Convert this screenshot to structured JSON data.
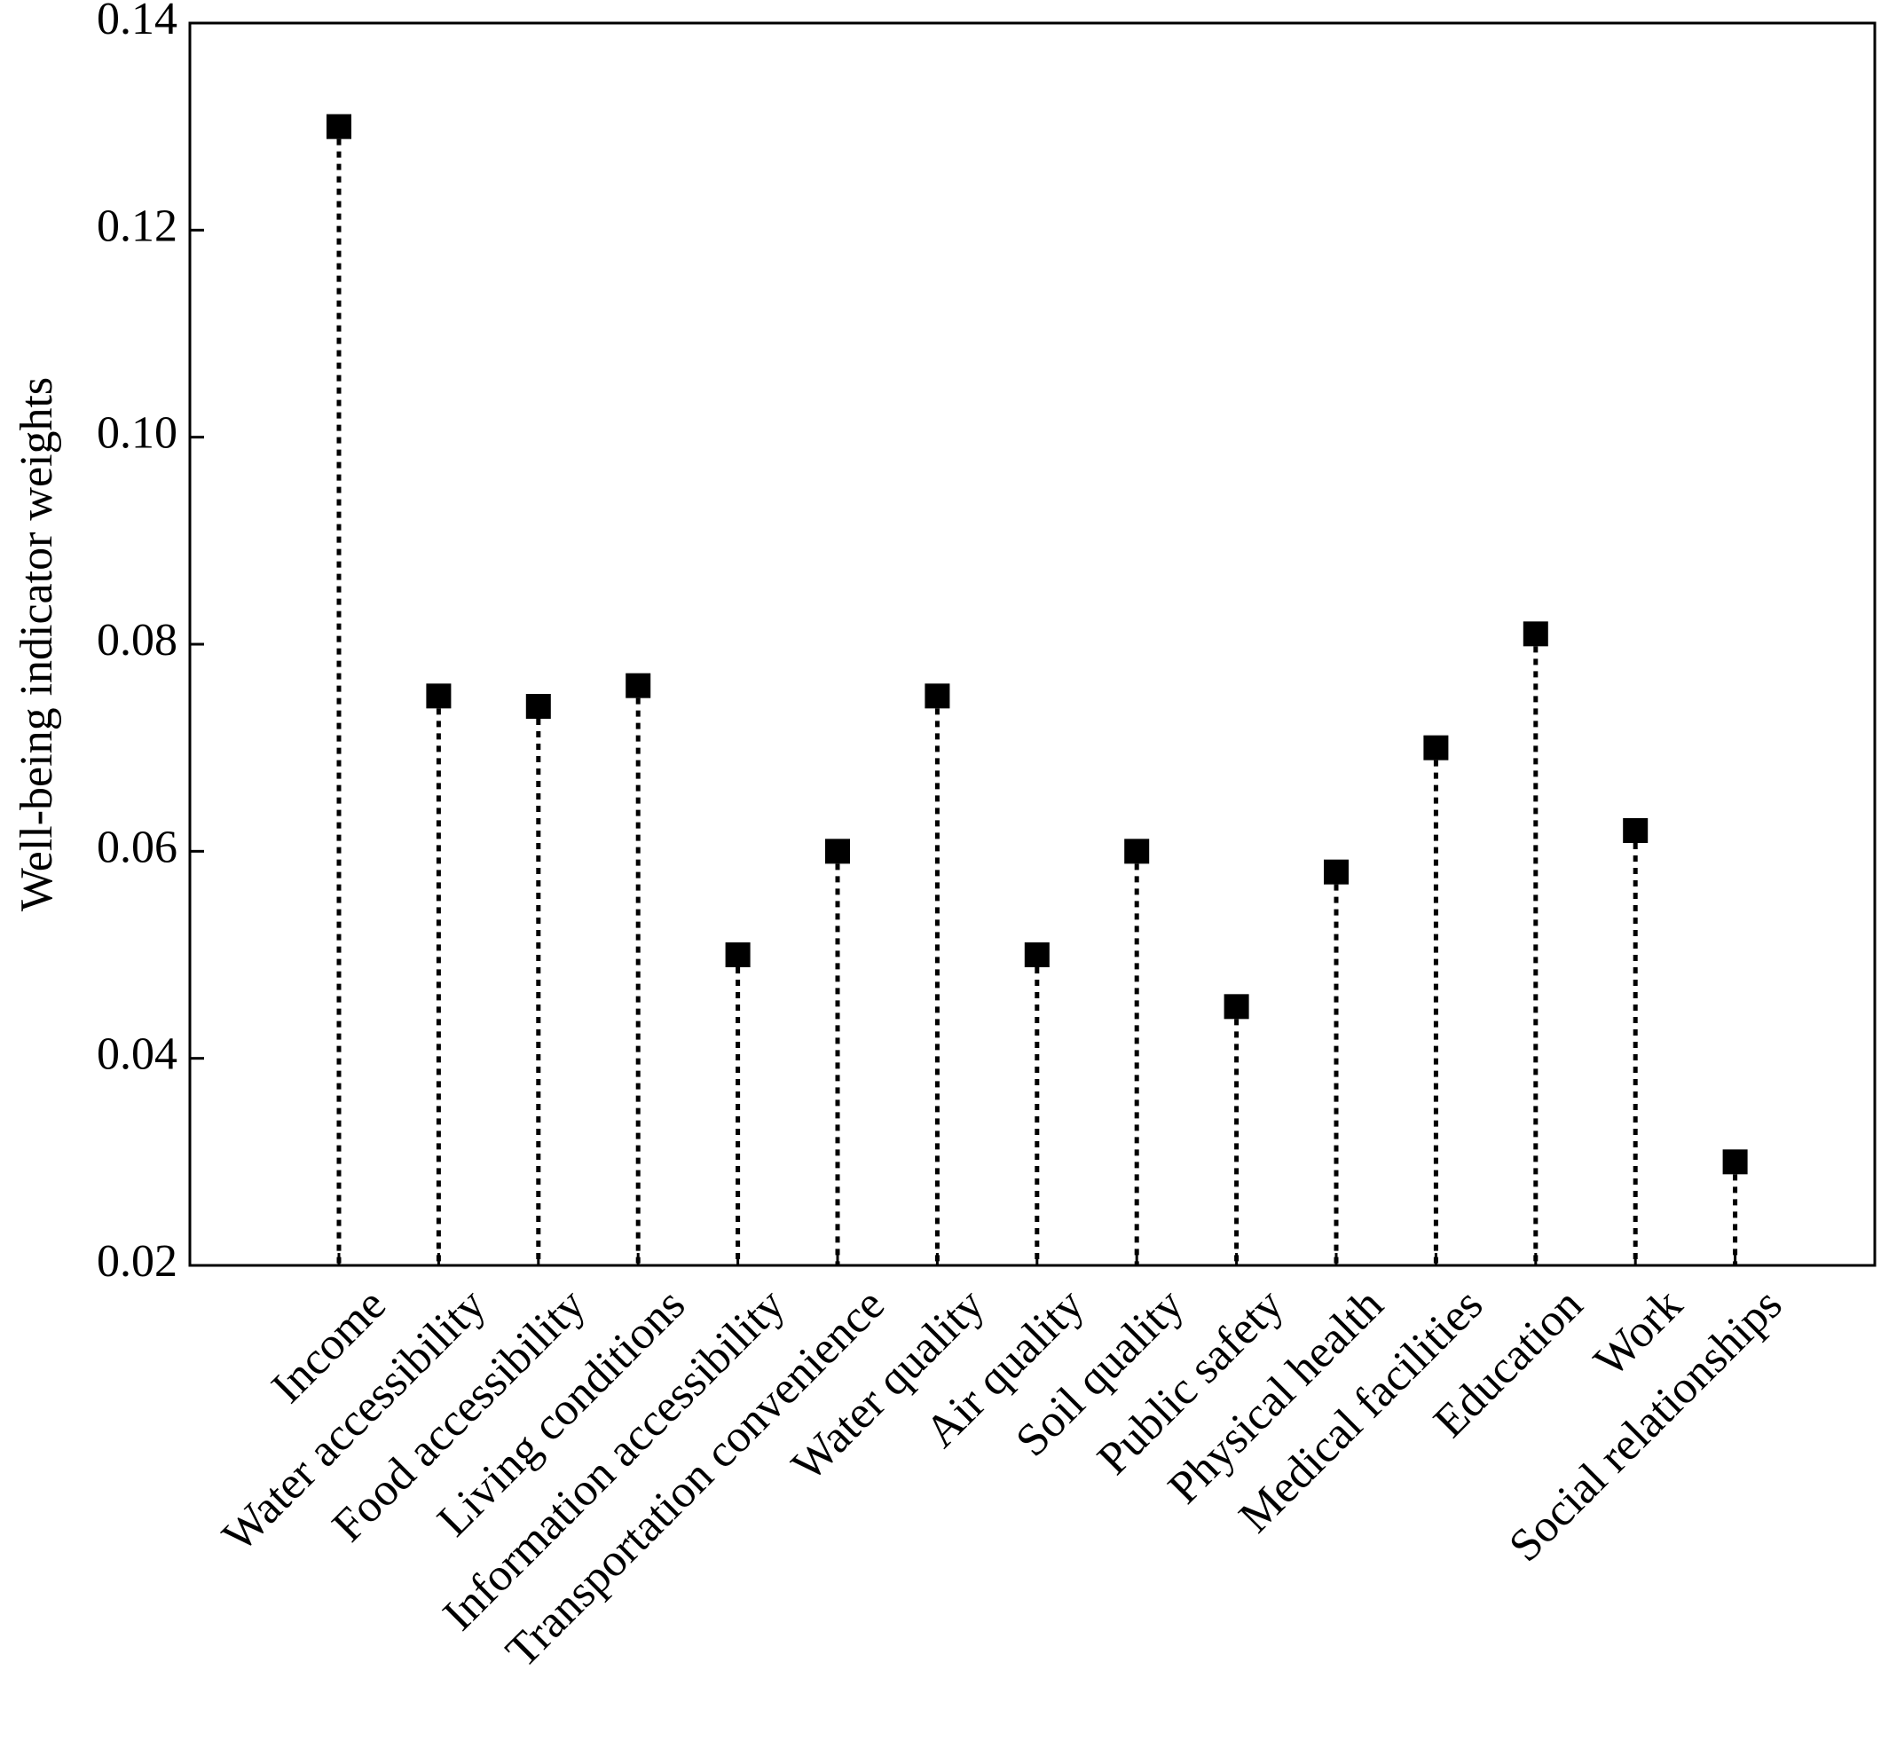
{
  "chart_data": {
    "type": "scatter",
    "style": "lollipop with dotted stems and square markers",
    "categories": [
      "Income",
      "Water accessibility",
      "Food accessibility",
      "Living conditions",
      "Information accessibility",
      "Transportation convenience",
      "Water quality",
      "Air quality",
      "Soil quality",
      "Public safety",
      "Physical health",
      "Medical facilities",
      "Education",
      "Work",
      "Social relationships"
    ],
    "values": [
      0.13,
      0.075,
      0.074,
      0.076,
      0.05,
      0.06,
      0.075,
      0.05,
      0.06,
      0.045,
      0.058,
      0.07,
      0.081,
      0.062,
      0.03
    ],
    "title": "",
    "xlabel": "",
    "ylabel": "Well-being indicator weights",
    "ylim": [
      0.02,
      0.14
    ],
    "yticks": [
      "0.02",
      "0.04",
      "0.06",
      "0.08",
      "0.10",
      "0.12",
      "0.14"
    ],
    "grid": false,
    "legend": "none",
    "colors": {
      "marker": "#000000",
      "stem": "#000000",
      "axis": "#000000"
    }
  }
}
